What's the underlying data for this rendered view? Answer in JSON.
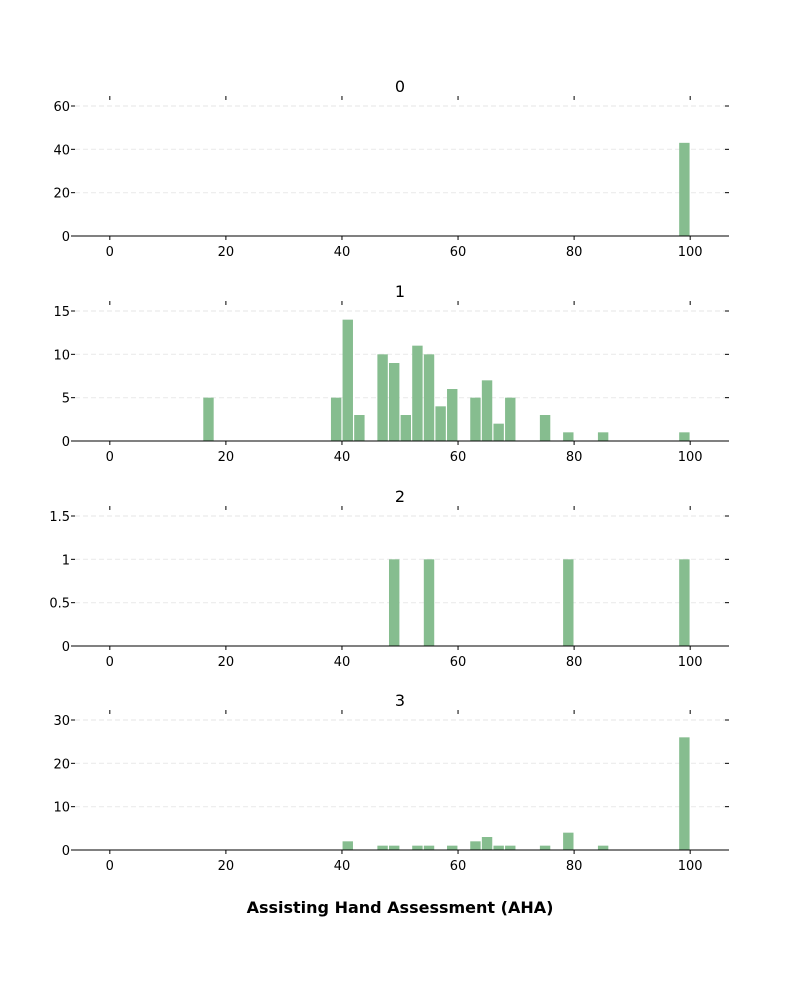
{
  "figure": {
    "xlabel": "Assisting Hand Assessment (AHA)"
  },
  "colors": {
    "bar": "#86bd8f",
    "grid": "#ebebeb",
    "axis": "#000000"
  },
  "chart_data": [
    {
      "type": "bar",
      "title": "0",
      "x_ticks": [
        0,
        20,
        40,
        60,
        80,
        100
      ],
      "y_ticks": [
        0,
        20,
        40,
        60
      ],
      "y_tick_labels": [
        "0",
        "20",
        "40",
        "60"
      ],
      "xlim": [
        -6,
        106
      ],
      "ylim": [
        0,
        60
      ],
      "bin_width": 2,
      "grid": true,
      "bins": [
        {
          "x": 98,
          "value": 43
        }
      ]
    },
    {
      "type": "bar",
      "title": "1",
      "x_ticks": [
        0,
        20,
        40,
        60,
        80,
        100
      ],
      "y_ticks": [
        0,
        5,
        10,
        15
      ],
      "y_tick_labels": [
        "0",
        "5",
        "10",
        "15"
      ],
      "xlim": [
        -6,
        106
      ],
      "ylim": [
        0,
        15
      ],
      "bin_width": 2,
      "grid": true,
      "bins": [
        {
          "x": 16,
          "value": 5
        },
        {
          "x": 38,
          "value": 5
        },
        {
          "x": 40,
          "value": 14
        },
        {
          "x": 42,
          "value": 3
        },
        {
          "x": 46,
          "value": 10
        },
        {
          "x": 48,
          "value": 9
        },
        {
          "x": 50,
          "value": 3
        },
        {
          "x": 52,
          "value": 11
        },
        {
          "x": 54,
          "value": 10
        },
        {
          "x": 56,
          "value": 4
        },
        {
          "x": 58,
          "value": 6
        },
        {
          "x": 62,
          "value": 5
        },
        {
          "x": 64,
          "value": 7
        },
        {
          "x": 66,
          "value": 2
        },
        {
          "x": 68,
          "value": 5
        },
        {
          "x": 74,
          "value": 3
        },
        {
          "x": 78,
          "value": 1
        },
        {
          "x": 84,
          "value": 1
        },
        {
          "x": 98,
          "value": 1
        }
      ]
    },
    {
      "type": "bar",
      "title": "2",
      "x_ticks": [
        0,
        20,
        40,
        60,
        80,
        100
      ],
      "y_ticks": [
        0,
        0.5,
        1,
        1.5
      ],
      "y_tick_labels": [
        "0",
        "0.5",
        "1",
        "1.5"
      ],
      "xlim": [
        -6,
        106
      ],
      "ylim": [
        0,
        1.5
      ],
      "bin_width": 2,
      "grid": true,
      "bins": [
        {
          "x": 48,
          "value": 1
        },
        {
          "x": 54,
          "value": 1
        },
        {
          "x": 78,
          "value": 1
        },
        {
          "x": 98,
          "value": 1
        }
      ]
    },
    {
      "type": "bar",
      "title": "3",
      "x_ticks": [
        0,
        20,
        40,
        60,
        80,
        100
      ],
      "y_ticks": [
        0,
        10,
        20,
        30
      ],
      "y_tick_labels": [
        "0",
        "10",
        "20",
        "30"
      ],
      "xlim": [
        -6,
        106
      ],
      "ylim": [
        0,
        30
      ],
      "bin_width": 2,
      "grid": true,
      "bins": [
        {
          "x": 40,
          "value": 2
        },
        {
          "x": 46,
          "value": 1
        },
        {
          "x": 48,
          "value": 1
        },
        {
          "x": 52,
          "value": 1
        },
        {
          "x": 54,
          "value": 1
        },
        {
          "x": 58,
          "value": 1
        },
        {
          "x": 62,
          "value": 2
        },
        {
          "x": 64,
          "value": 3
        },
        {
          "x": 66,
          "value": 1
        },
        {
          "x": 68,
          "value": 1
        },
        {
          "x": 74,
          "value": 1
        },
        {
          "x": 78,
          "value": 4
        },
        {
          "x": 84,
          "value": 1
        },
        {
          "x": 98,
          "value": 26
        }
      ]
    }
  ]
}
